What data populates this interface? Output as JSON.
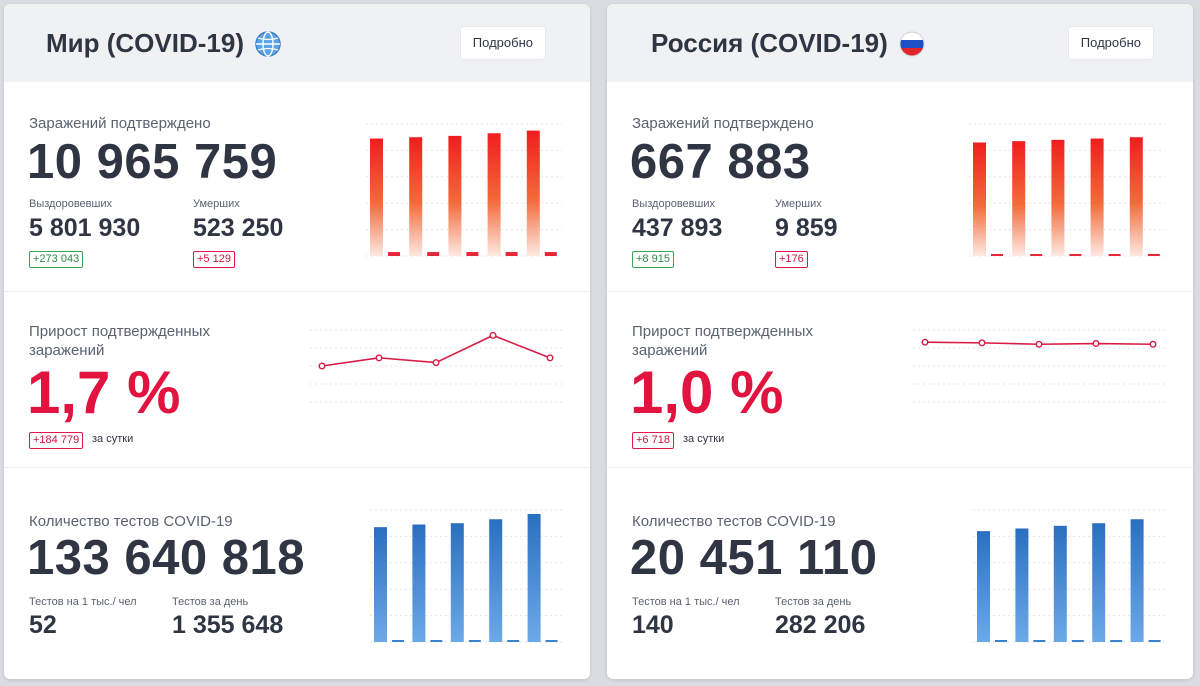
{
  "colors": {
    "accent_red": "#e3133f",
    "bar_red_top": "#f2201f",
    "bar_blue_top": "#2f73c2",
    "bar_blue_bottom": "#6aa7e6",
    "line_red": "#d81b45",
    "badge_green": "#3aa757"
  },
  "cards": [
    {
      "id": "world",
      "title": "Мир (COVID-19)",
      "icon": "globe-icon",
      "details_label": "Подробно",
      "confirmed": {
        "label": "Заражений подтверждено",
        "value": "10 965 759",
        "recovered_label": "Выздоровевших",
        "recovered_value": "5 801 930",
        "recovered_delta": "+273 043",
        "deaths_label": "Умерших",
        "deaths_value": "523 250",
        "deaths_delta": "+5 129"
      },
      "growth": {
        "label_line1": "Прирост подтвержденных",
        "label_line2": "заражений",
        "value": "1,7 %",
        "delta": "+184 779",
        "delta_suffix": "за сутки"
      },
      "tests": {
        "label": "Количество тестов COVID-19",
        "value": "133 640 818",
        "per_thousand_label": "Тестов на 1 тыс./ чел",
        "per_thousand_value": "52",
        "per_day_label": "Тестов за день",
        "per_day_value": "1 355 648"
      }
    },
    {
      "id": "russia",
      "title": "Россия (COVID-19)",
      "icon": "russian-flag-icon",
      "details_label": "Подробно",
      "confirmed": {
        "label": "Заражений подтверждено",
        "value": "667 883",
        "recovered_label": "Выздоровевших",
        "recovered_value": "437 893",
        "recovered_delta": "+8 915",
        "deaths_label": "Умерших",
        "deaths_value": "9 859",
        "deaths_delta": "+176"
      },
      "growth": {
        "label_line1": "Прирост подтвержденных",
        "label_line2": "заражений",
        "value": "1,0 %",
        "delta": "+6 718",
        "delta_suffix": "за сутки"
      },
      "tests": {
        "label": "Количество тестов COVID-19",
        "value": "20 451 110",
        "per_thousand_label": "Тестов на 1 тыс./ чел",
        "per_thousand_value": "140",
        "per_day_label": "Тестов за день",
        "per_day_value": "282 206"
      }
    }
  ],
  "chart_data": [
    {
      "type": "bar",
      "chart": "world-confirmed",
      "series": [
        {
          "name": "total",
          "values": [
            0.89,
            0.9,
            0.91,
            0.93,
            0.95
          ]
        },
        {
          "name": "daily",
          "values": [
            0.03,
            0.03,
            0.03,
            0.03,
            0.03
          ]
        }
      ]
    },
    {
      "type": "line",
      "chart": "world-growth",
      "values": [
        0.5,
        0.62,
        0.55,
        0.95,
        0.62
      ]
    },
    {
      "type": "bar",
      "chart": "world-tests",
      "series": [
        {
          "name": "total",
          "values": [
            0.87,
            0.89,
            0.9,
            0.93,
            0.97
          ]
        },
        {
          "name": "daily",
          "values": [
            0.015,
            0.015,
            0.015,
            0.015,
            0.015
          ]
        }
      ]
    },
    {
      "type": "bar",
      "chart": "russia-confirmed",
      "series": [
        {
          "name": "total",
          "values": [
            0.86,
            0.87,
            0.88,
            0.89,
            0.9
          ]
        },
        {
          "name": "daily",
          "values": [
            0.01,
            0.01,
            0.01,
            0.01,
            0.01
          ]
        }
      ]
    },
    {
      "type": "line",
      "chart": "russia-growth",
      "values": [
        0.85,
        0.84,
        0.82,
        0.83,
        0.82
      ]
    },
    {
      "type": "bar",
      "chart": "russia-tests",
      "series": [
        {
          "name": "total",
          "values": [
            0.84,
            0.86,
            0.88,
            0.9,
            0.93
          ]
        },
        {
          "name": "daily",
          "values": [
            0.015,
            0.015,
            0.015,
            0.015,
            0.015
          ]
        }
      ]
    }
  ]
}
